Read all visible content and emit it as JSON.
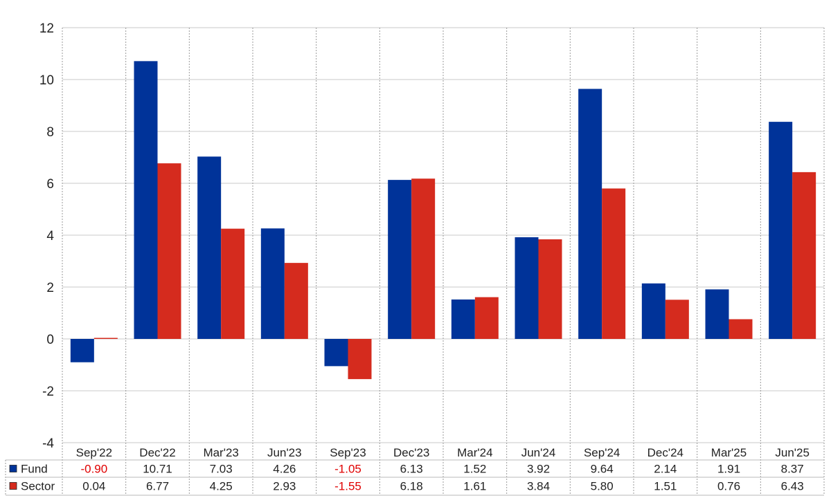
{
  "chart_data": {
    "type": "bar",
    "categories": [
      "Sep'22",
      "Dec'22",
      "Mar'23",
      "Jun'23",
      "Sep'23",
      "Dec'23",
      "Mar'24",
      "Jun'24",
      "Sep'24",
      "Dec'24",
      "Mar'25",
      "Jun'25"
    ],
    "series": [
      {
        "name": "Fund",
        "color": "#003399",
        "values": [
          -0.9,
          10.71,
          7.03,
          4.26,
          -1.05,
          6.13,
          1.52,
          3.92,
          9.64,
          2.14,
          1.91,
          8.37
        ]
      },
      {
        "name": "Sector",
        "color": "#d52b1e",
        "values": [
          0.04,
          6.77,
          4.25,
          2.93,
          -1.55,
          6.18,
          1.61,
          3.84,
          5.8,
          1.51,
          0.76,
          6.43
        ]
      }
    ],
    "table": {
      "rows": [
        {
          "label": "Fund",
          "cells": [
            "-0.90",
            "10.71",
            "7.03",
            "4.26",
            "-1.05",
            "6.13",
            "1.52",
            "3.92",
            "9.64",
            "2.14",
            "1.91",
            "8.37"
          ]
        },
        {
          "label": "Sector",
          "cells": [
            "0.04",
            "6.77",
            "4.25",
            "2.93",
            "-1.55",
            "6.18",
            "1.61",
            "3.84",
            "5.80",
            "1.51",
            "0.76",
            "6.43"
          ]
        }
      ]
    },
    "ylim": [
      -4,
      12
    ],
    "yticks": [
      "12",
      "10",
      "8",
      "6",
      "4",
      "2",
      "0",
      "-2",
      "-4"
    ],
    "grid": true,
    "legend": "data-table",
    "negative_color": "#e00000"
  }
}
